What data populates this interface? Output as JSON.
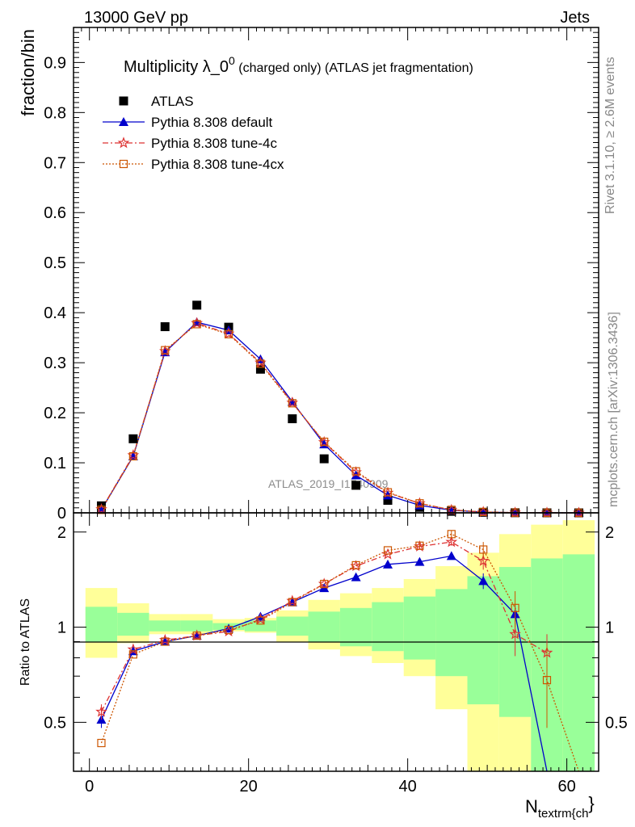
{
  "header": {
    "left": "13000 GeV pp",
    "right": "Jets"
  },
  "side": {
    "rivet": "Rivet 3.1.10, ≥ 2.6M events",
    "mcplots": "mcplots.cern.ch [arXiv:1306.3436]"
  },
  "chart_data": [
    {
      "type": "scatter",
      "title": "Multiplicity λ_0^0 (charged only) (ATLAS jet fragmentation)",
      "title_main": "Multiplicity λ_0",
      "title_sup": "0",
      "title_rest": " (charged only) (ATLAS jet fragmentation)",
      "ylabel": "fraction/bin",
      "watermark": "ATLAS_2019_I1740909",
      "xlim": [
        -2,
        64
      ],
      "ylim": [
        0,
        0.97
      ],
      "yticks": [
        0,
        0.1,
        0.2,
        0.3,
        0.4,
        0.5,
        0.6,
        0.7,
        0.8,
        0.9
      ],
      "ytick_labels": [
        "0",
        "0.1",
        "0.2",
        "0.3",
        "0.4",
        "0.5",
        "0.6",
        "0.7",
        "0.8",
        "0.9"
      ],
      "legend_position": "top-left",
      "x": [
        1.5,
        5.5,
        9.5,
        13.5,
        17.5,
        21.5,
        25.5,
        29.5,
        33.5,
        37.5,
        41.5,
        45.5,
        49.5,
        53.5,
        57.5,
        61.5
      ],
      "series": [
        {
          "name": "ATLAS",
          "color": "#000000",
          "marker": "square",
          "values": [
            0.014,
            0.148,
            0.372,
            0.415,
            0.371,
            0.287,
            0.188,
            0.108,
            0.055,
            0.025,
            0.011,
            0.003,
            0.001,
            0.0003,
            0.0001,
            2e-05
          ]
        },
        {
          "name": "Pythia 8.308 default",
          "color": "#0000cc",
          "marker": "triangle",
          "values": [
            0.006,
            0.113,
            0.321,
            0.381,
            0.365,
            0.307,
            0.222,
            0.137,
            0.075,
            0.035,
            0.015,
            0.0053,
            0.0015,
            0.0004,
            0.0001,
            2e-05
          ]
        },
        {
          "name": "Pythia 8.308 tune-4c",
          "color": "#dd3333",
          "marker": "star",
          "values": [
            0.007,
            0.115,
            0.323,
            0.379,
            0.358,
            0.3,
            0.22,
            0.141,
            0.081,
            0.04,
            0.019,
            0.0058,
            0.0017,
            0.0004,
            0.0001,
            2e-05
          ]
        },
        {
          "name": "Pythia 8.308 tune-4cx",
          "color": "#cc5500",
          "marker": "open-square",
          "values": [
            0.006,
            0.113,
            0.325,
            0.377,
            0.357,
            0.298,
            0.219,
            0.142,
            0.083,
            0.041,
            0.019,
            0.006,
            0.0018,
            0.0004,
            0.0001,
            2e-05
          ]
        }
      ]
    },
    {
      "type": "line",
      "ylabel": "Ratio to ATLAS",
      "xlabel": "N",
      "xlabel_sub": "textrm{ch",
      "xlabel_tail": "}",
      "xlim": [
        -2,
        64
      ],
      "ylim": [
        0.35,
        2.3
      ],
      "xticks": [
        0,
        20,
        40,
        60
      ],
      "xtick_labels": [
        "0",
        "20",
        "40",
        "60"
      ],
      "yticks": [
        0.5,
        1,
        2
      ],
      "ytick_labels": [
        "0.5",
        "1",
        "2"
      ],
      "bins": [
        [
          -0.5,
          3.5
        ],
        [
          3.5,
          7.5
        ],
        [
          7.5,
          11.5
        ],
        [
          11.5,
          15.5
        ],
        [
          15.5,
          19.5
        ],
        [
          19.5,
          23.5
        ],
        [
          23.5,
          27.5
        ],
        [
          27.5,
          31.5
        ],
        [
          31.5,
          35.5
        ],
        [
          35.5,
          39.5
        ],
        [
          39.5,
          43.5
        ],
        [
          43.5,
          47.5
        ],
        [
          47.5,
          51.5
        ],
        [
          51.5,
          55.5
        ],
        [
          55.5,
          59.5
        ],
        [
          59.5,
          63.5
        ]
      ],
      "band_green": [
        [
          0.9,
          1.16
        ],
        [
          0.94,
          1.11
        ],
        [
          0.97,
          1.05
        ],
        [
          0.97,
          1.05
        ],
        [
          0.98,
          1.03
        ],
        [
          0.97,
          1.05
        ],
        [
          0.94,
          1.08
        ],
        [
          0.9,
          1.12
        ],
        [
          0.87,
          1.15
        ],
        [
          0.84,
          1.2
        ],
        [
          0.79,
          1.25
        ],
        [
          0.7,
          1.32
        ],
        [
          0.57,
          1.45
        ],
        [
          0.52,
          1.55
        ],
        [
          0.35,
          1.65
        ],
        [
          0.35,
          1.7
        ]
      ],
      "band_yellow": [
        [
          0.8,
          1.33
        ],
        [
          0.89,
          1.19
        ],
        [
          0.95,
          1.1
        ],
        [
          0.95,
          1.1
        ],
        [
          0.97,
          1.06
        ],
        [
          0.96,
          1.07
        ],
        [
          0.9,
          1.13
        ],
        [
          0.85,
          1.22
        ],
        [
          0.81,
          1.28
        ],
        [
          0.77,
          1.33
        ],
        [
          0.7,
          1.42
        ],
        [
          0.55,
          1.56
        ],
        [
          0.35,
          1.72
        ],
        [
          0.35,
          1.97
        ],
        [
          0.35,
          2.11
        ],
        [
          0.35,
          2.18
        ]
      ],
      "x": [
        1.5,
        5.5,
        9.5,
        13.5,
        17.5,
        21.5,
        25.5,
        29.5,
        33.5,
        37.5,
        41.5,
        45.5,
        49.5,
        53.5,
        57.5,
        61.5
      ],
      "series": [
        {
          "name": "Pythia 8.308 default",
          "color": "#0000cc",
          "marker": "triangle",
          "dash": "",
          "values": [
            0.51,
            0.84,
            0.9,
            0.94,
            0.99,
            1.08,
            1.2,
            1.33,
            1.44,
            1.58,
            1.61,
            1.68,
            1.4,
            1.1,
            0.05,
            null
          ],
          "errors": [
            0.03,
            0.01,
            0.01,
            0.01,
            0.01,
            0.01,
            0.01,
            0.01,
            0.01,
            0.02,
            0.02,
            0.04,
            0.08,
            0.08,
            0,
            0
          ]
        },
        {
          "name": "Pythia 8.308 tune-4c",
          "color": "#dd3333",
          "marker": "star",
          "dash": "7,3,2,3",
          "values": [
            0.54,
            0.85,
            0.91,
            0.94,
            0.97,
            1.06,
            1.21,
            1.37,
            1.56,
            1.7,
            1.8,
            1.86,
            1.62,
            0.95,
            0.83,
            null
          ],
          "errors": [
            0.03,
            0.01,
            0.01,
            0.01,
            0.01,
            0.01,
            0.01,
            0.01,
            0.02,
            0.02,
            0.03,
            0.05,
            0.1,
            0.14,
            0.12,
            0
          ]
        },
        {
          "name": "Pythia 8.308 tune-4cx",
          "color": "#cc5500",
          "marker": "open-square",
          "dash": "2,2",
          "values": [
            0.43,
            0.82,
            0.9,
            0.94,
            0.98,
            1.05,
            1.2,
            1.37,
            1.57,
            1.75,
            1.81,
            1.97,
            1.76,
            1.15,
            0.68,
            0.1
          ],
          "errors": [
            0.02,
            0.01,
            0.01,
            0.01,
            0.01,
            0.01,
            0.01,
            0.01,
            0.02,
            0.02,
            0.03,
            0.05,
            0.1,
            0.15,
            0.2,
            0
          ]
        }
      ]
    }
  ]
}
